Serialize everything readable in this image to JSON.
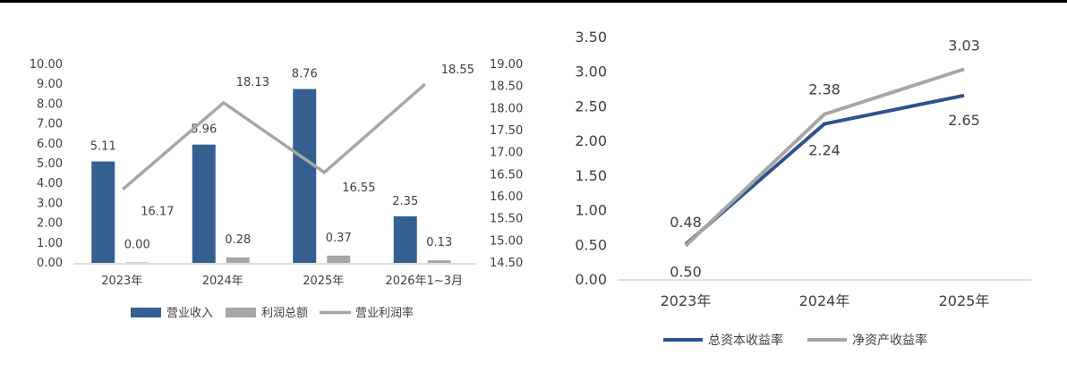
{
  "colors": {
    "revenue": "#365F91",
    "profit_total": "#A6A6A6",
    "margin": "#A6A6A6",
    "roa": "#2F528F",
    "roe": "#A6A6A6",
    "axis": "#BFBFBF"
  },
  "chart_data": [
    {
      "type": "bar",
      "categories": [
        "2023年",
        "2024年",
        "2025年",
        "2026年1~3月"
      ],
      "y_ticks": [
        "10.00",
        "9.00",
        "8.00",
        "7.00",
        "6.00",
        "5.00",
        "4.00",
        "3.00",
        "2.00",
        "1.00",
        "0.00"
      ],
      "y2_ticks": [
        "19.00",
        "18.50",
        "18.00",
        "17.50",
        "17.00",
        "16.50",
        "16.00",
        "15.50",
        "15.00",
        "14.50"
      ],
      "ylim": [
        0,
        10
      ],
      "y2lim": [
        14.5,
        19.0
      ],
      "series": [
        {
          "name": "营业收入",
          "kind": "bar",
          "values": [
            5.11,
            5.96,
            8.76,
            2.35
          ],
          "labels": [
            "5.11",
            "5.96",
            "8.76",
            "2.35"
          ]
        },
        {
          "name": "利润总额",
          "kind": "bar",
          "values": [
            0.0,
            0.28,
            0.37,
            0.13
          ],
          "labels": [
            "0.00",
            "0.28",
            "0.37",
            "0.13"
          ]
        },
        {
          "name": "营业利润率",
          "kind": "line",
          "axis": "right",
          "values": [
            16.17,
            18.13,
            16.55,
            18.55
          ],
          "labels": [
            "16.17",
            "18.13",
            "16.55",
            "18.55"
          ]
        }
      ],
      "legend_placement": "bottom"
    },
    {
      "type": "line",
      "categories": [
        "2023年",
        "2024年",
        "2025年"
      ],
      "y_ticks": [
        "3.50",
        "3.00",
        "2.50",
        "2.00",
        "1.50",
        "1.00",
        "0.50",
        "0.00"
      ],
      "ylim": [
        0,
        3.5
      ],
      "series": [
        {
          "name": "总资本收益率",
          "values": [
            0.5,
            2.24,
            2.65
          ],
          "labels": [
            "0.50",
            "2.24",
            "2.65"
          ]
        },
        {
          "name": "净资产收益率",
          "values": [
            0.48,
            2.38,
            3.03
          ],
          "labels": [
            "0.48",
            "2.38",
            "3.03"
          ]
        }
      ],
      "legend_placement": "bottom"
    }
  ]
}
